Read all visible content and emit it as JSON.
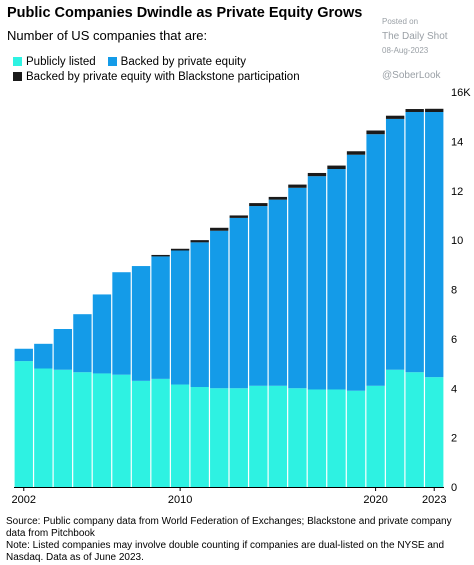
{
  "header": {
    "title": "Public Companies Dwindle as Private Equity Grows",
    "subtitle": "Number of US companies that are:"
  },
  "watermark": {
    "posted": "Posted on",
    "source": "The Daily Shot",
    "date": "08-Aug-2023",
    "handle": "@SoberLook"
  },
  "footnote": {
    "source": "Source: Public company data from World Federation of Exchanges; Blackstone and private company data from Pitchbook",
    "note": "Note: Listed companies may involve double counting if companies are dual-listed on the NYSE and Nasdaq. Data as of June 2023."
  },
  "chart_data": {
    "type": "bar",
    "stacked": true,
    "categories": [
      "2002",
      "2003",
      "2004",
      "2005",
      "2006",
      "2007",
      "2008",
      "2009",
      "2010",
      "2011",
      "2012",
      "2013",
      "2014",
      "2015",
      "2016",
      "2017",
      "2018",
      "2019",
      "2020",
      "2021",
      "2022",
      "2023"
    ],
    "x_tick_labels": [
      "2002",
      "2010",
      "2020",
      "2023"
    ],
    "y_tick_labels": [
      "0",
      "2",
      "4",
      "6",
      "8",
      "10",
      "12",
      "14",
      "16K"
    ],
    "ylim": [
      0,
      16000
    ],
    "grid": false,
    "legend_position": "top-left",
    "series": [
      {
        "name": "Publicly listed",
        "color": "#2ef2e2",
        "values": [
          5100,
          4800,
          4750,
          4650,
          4600,
          4550,
          4300,
          4380,
          4150,
          4050,
          4000,
          4000,
          4100,
          4100,
          4000,
          3950,
          3950,
          3900,
          4100,
          4750,
          4650,
          4450
        ]
      },
      {
        "name": "Backed by private equity",
        "color": "#149be8",
        "values": [
          500,
          1000,
          1650,
          2350,
          3200,
          4150,
          4650,
          4960,
          5430,
          5860,
          6380,
          6900,
          7280,
          7540,
          8120,
          8640,
          8930,
          9560,
          10190,
          10160,
          10540,
          10740
        ]
      },
      {
        "name": "Backed by private equity with Blackstone participation",
        "color": "#1a1a1a",
        "values": [
          0,
          0,
          0,
          0,
          0,
          0,
          0,
          60,
          70,
          90,
          120,
          100,
          120,
          110,
          130,
          130,
          140,
          140,
          150,
          130,
          120,
          130
        ]
      }
    ]
  }
}
